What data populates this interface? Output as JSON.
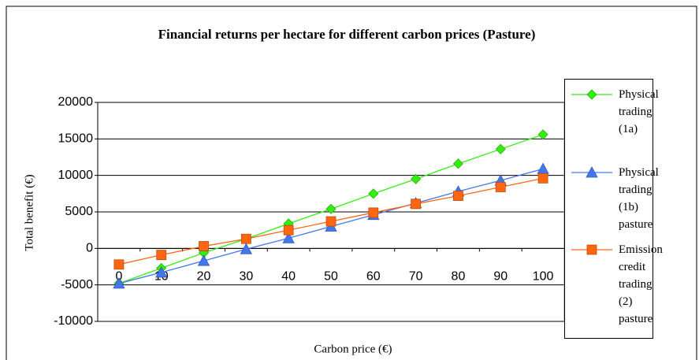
{
  "chart_data": {
    "type": "line",
    "title": "Financial returns per hectare for different carbon prices (Pasture)",
    "x_label": "Carbon price (€)",
    "y_label": "Total benefit (€)",
    "categories": [
      "0",
      "10",
      "20",
      "30",
      "40",
      "50",
      "60",
      "70",
      "80",
      "90",
      "100"
    ],
    "series": [
      {
        "name": "Physical trading (1a)",
        "color": "#33ee11",
        "marker": "diamond",
        "values": [
          -4800,
          -2700,
          -600,
          1300,
          3400,
          5400,
          7500,
          9500,
          11600,
          13600,
          15600
        ]
      },
      {
        "name": "Physical trading (1b) pasture",
        "color": "#4477ee",
        "marker": "triangle",
        "values": [
          -4800,
          -3300,
          -1700,
          -100,
          1400,
          3000,
          4600,
          6200,
          7800,
          9300,
          10900
        ]
      },
      {
        "name": "Emission credit trading (2) pasture",
        "color": "#ff6611",
        "marker": "square",
        "values": [
          -2200,
          -900,
          300,
          1300,
          2500,
          3700,
          4900,
          6100,
          7200,
          8400,
          9600
        ]
      }
    ],
    "ylim": [
      -10000,
      20000
    ],
    "yticks": [
      -10000,
      -5000,
      0,
      5000,
      10000,
      15000,
      20000
    ],
    "grid": true
  }
}
